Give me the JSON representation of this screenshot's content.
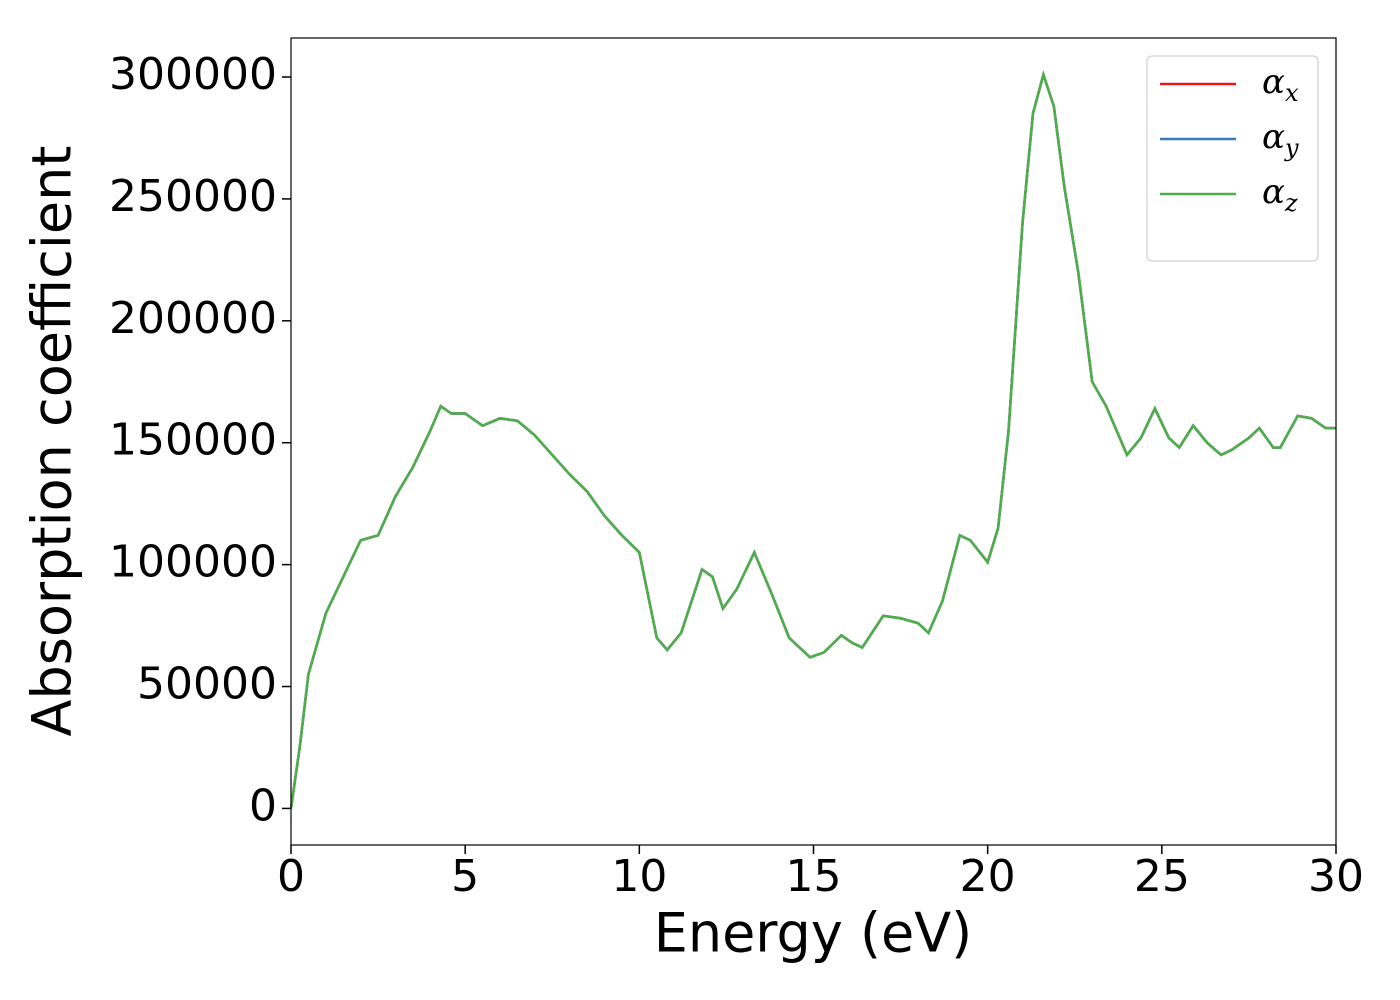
{
  "chart_data": {
    "type": "line",
    "xlabel": "Energy (eV)",
    "ylabel": "Absorption coefficient",
    "x": [
      0,
      0.25,
      0.5,
      1,
      1.5,
      2,
      2.5,
      3,
      3.5,
      4,
      4.3,
      4.6,
      5,
      5.5,
      6,
      6.5,
      7,
      7.5,
      8,
      8.5,
      9,
      9.5,
      10,
      10.5,
      10.8,
      11.2,
      11.8,
      12.1,
      12.4,
      12.8,
      13.3,
      13.8,
      14.3,
      14.9,
      15.3,
      15.8,
      16.1,
      16.4,
      17,
      17.5,
      18,
      18.3,
      18.7,
      19.2,
      19.5,
      20,
      20.3,
      20.6,
      21,
      21.3,
      21.6,
      21.9,
      22.2,
      22.6,
      23,
      23.4,
      24,
      24.4,
      24.8,
      25.2,
      25.5,
      25.9,
      26.3,
      26.7,
      27,
      27.5,
      27.8,
      28.2,
      28.4,
      28.9,
      29.3,
      29.7,
      30
    ],
    "series": [
      {
        "name": "αx",
        "color": "#e41a1c",
        "values": [
          0,
          25000,
          55000,
          80000,
          95000,
          110000,
          112000,
          128000,
          140000,
          155000,
          165000,
          162000,
          162000,
          157000,
          160000,
          159000,
          153000,
          145000,
          137000,
          130000,
          120000,
          112000,
          105000,
          70000,
          65000,
          72000,
          98000,
          95000,
          82000,
          90000,
          105000,
          88000,
          70000,
          62000,
          64000,
          71000,
          68000,
          66000,
          79000,
          78000,
          76000,
          72000,
          85000,
          112000,
          110000,
          101000,
          115000,
          155000,
          240000,
          285000,
          301000,
          288000,
          255000,
          220000,
          175000,
          165000,
          145000,
          152000,
          164000,
          152000,
          148000,
          157000,
          150000,
          145000,
          147000,
          152000,
          156000,
          148000,
          148000,
          161000,
          160000,
          156000,
          156000
        ]
      },
      {
        "name": "αy",
        "color": "#377eb8",
        "values": [
          0,
          25000,
          55000,
          80000,
          95000,
          110000,
          112000,
          128000,
          140000,
          155000,
          165000,
          162000,
          162000,
          157000,
          160000,
          159000,
          153000,
          145000,
          137000,
          130000,
          120000,
          112000,
          105000,
          70000,
          65000,
          72000,
          98000,
          95000,
          82000,
          90000,
          105000,
          88000,
          70000,
          62000,
          64000,
          71000,
          68000,
          66000,
          79000,
          78000,
          76000,
          72000,
          85000,
          112000,
          110000,
          101000,
          115000,
          155000,
          240000,
          285000,
          301000,
          288000,
          255000,
          220000,
          175000,
          165000,
          145000,
          152000,
          164000,
          152000,
          148000,
          157000,
          150000,
          145000,
          147000,
          152000,
          156000,
          148000,
          148000,
          161000,
          160000,
          156000,
          156000
        ]
      },
      {
        "name": "αz",
        "color": "#4daf4a",
        "values": [
          0,
          25000,
          55000,
          80000,
          95000,
          110000,
          112000,
          128000,
          140000,
          155000,
          165000,
          162000,
          162000,
          157000,
          160000,
          159000,
          153000,
          145000,
          137000,
          130000,
          120000,
          112000,
          105000,
          70000,
          65000,
          72000,
          98000,
          95000,
          82000,
          90000,
          105000,
          88000,
          70000,
          62000,
          64000,
          71000,
          68000,
          66000,
          79000,
          78000,
          76000,
          72000,
          85000,
          112000,
          110000,
          101000,
          115000,
          155000,
          240000,
          285000,
          301000,
          288000,
          255000,
          220000,
          175000,
          165000,
          145000,
          152000,
          164000,
          152000,
          148000,
          157000,
          150000,
          145000,
          147000,
          152000,
          156000,
          148000,
          148000,
          161000,
          160000,
          156000,
          156000
        ]
      }
    ],
    "xlim": [
      0,
      30
    ],
    "xticks": [
      0,
      5,
      10,
      15,
      20,
      25,
      30
    ],
    "ylim": [
      -15000,
      316000
    ],
    "yticks": [
      0,
      50000,
      100000,
      150000,
      200000,
      250000,
      300000
    ],
    "legend": "upper right",
    "grid": false
  }
}
